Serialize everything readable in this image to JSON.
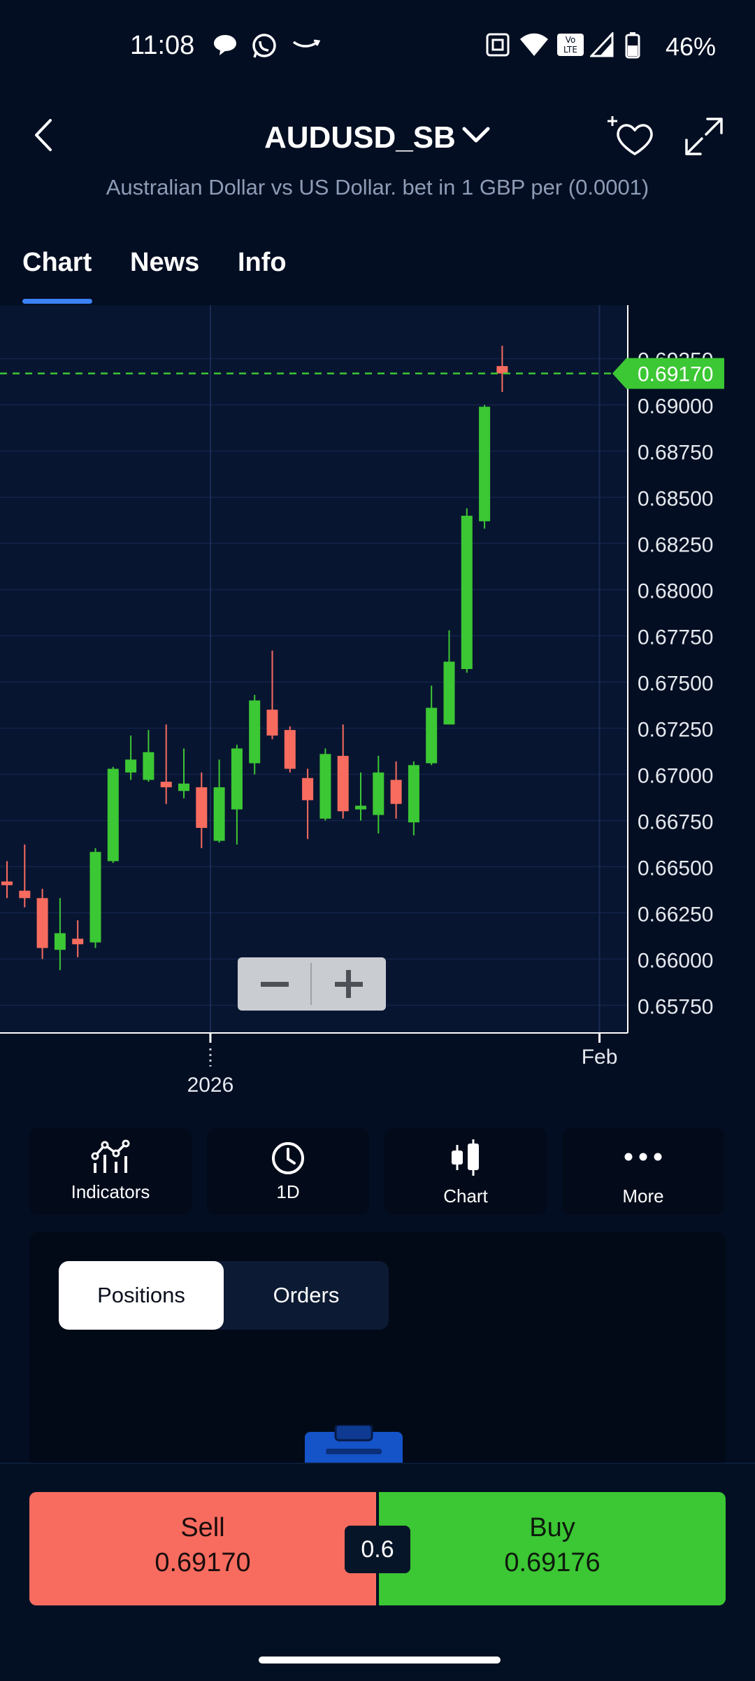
{
  "status_bar": {
    "time": "11:08",
    "battery_percent": "46%"
  },
  "header": {
    "symbol": "AUDUSD_SB",
    "description": "Australian Dollar vs US Dollar. bet in 1 GBP per (0.0001)"
  },
  "tabs": [
    {
      "label": "Chart",
      "active": true
    },
    {
      "label": "News",
      "active": false
    },
    {
      "label": "Info",
      "active": false
    }
  ],
  "chart_data": {
    "type": "candlestick",
    "current_price": 0.6917,
    "current_price_label": "0.69170",
    "y_ticks": [
      "0.69250",
      "0.69000",
      "0.68750",
      "0.68500",
      "0.68250",
      "0.68000",
      "0.67750",
      "0.67500",
      "0.67250",
      "0.67000",
      "0.66750",
      "0.66500",
      "0.66250",
      "0.66000",
      "0.65750"
    ],
    "ylim": [
      0.656,
      0.6954
    ],
    "x_labels": [
      {
        "label": "2026",
        "index": 11.5
      },
      {
        "label": "Feb",
        "index": 33.5
      }
    ],
    "up_color": "#3cc734",
    "down_color": "#f86c5f",
    "candles": [
      {
        "o": 0.6642,
        "h": 0.6653,
        "l": 0.6633,
        "c": 0.664
      },
      {
        "o": 0.6637,
        "h": 0.6662,
        "l": 0.6628,
        "c": 0.6633
      },
      {
        "o": 0.6633,
        "h": 0.6638,
        "l": 0.66,
        "c": 0.6606
      },
      {
        "o": 0.6605,
        "h": 0.6633,
        "l": 0.6594,
        "c": 0.6614
      },
      {
        "o": 0.6611,
        "h": 0.6621,
        "l": 0.6601,
        "c": 0.6608
      },
      {
        "o": 0.6609,
        "h": 0.666,
        "l": 0.6606,
        "c": 0.6658
      },
      {
        "o": 0.6653,
        "h": 0.6704,
        "l": 0.6652,
        "c": 0.6703
      },
      {
        "o": 0.6701,
        "h": 0.6721,
        "l": 0.6697,
        "c": 0.6708
      },
      {
        "o": 0.6697,
        "h": 0.6724,
        "l": 0.6696,
        "c": 0.6712
      },
      {
        "o": 0.6696,
        "h": 0.6727,
        "l": 0.6684,
        "c": 0.6693
      },
      {
        "o": 0.6691,
        "h": 0.6714,
        "l": 0.6687,
        "c": 0.6695
      },
      {
        "o": 0.6693,
        "h": 0.6701,
        "l": 0.666,
        "c": 0.6671
      },
      {
        "o": 0.6664,
        "h": 0.6708,
        "l": 0.6663,
        "c": 0.6693
      },
      {
        "o": 0.6681,
        "h": 0.6716,
        "l": 0.6662,
        "c": 0.6714
      },
      {
        "o": 0.6706,
        "h": 0.6743,
        "l": 0.67,
        "c": 0.674
      },
      {
        "o": 0.6735,
        "h": 0.6767,
        "l": 0.6719,
        "c": 0.6721
      },
      {
        "o": 0.6724,
        "h": 0.6726,
        "l": 0.6701,
        "c": 0.6703
      },
      {
        "o": 0.6698,
        "h": 0.6703,
        "l": 0.6665,
        "c": 0.6686
      },
      {
        "o": 0.6676,
        "h": 0.6714,
        "l": 0.6675,
        "c": 0.6711
      },
      {
        "o": 0.671,
        "h": 0.6727,
        "l": 0.6676,
        "c": 0.668
      },
      {
        "o": 0.6681,
        "h": 0.6701,
        "l": 0.6675,
        "c": 0.6683
      },
      {
        "o": 0.6678,
        "h": 0.671,
        "l": 0.6668,
        "c": 0.6701
      },
      {
        "o": 0.6697,
        "h": 0.6707,
        "l": 0.6676,
        "c": 0.6684
      },
      {
        "o": 0.6674,
        "h": 0.6707,
        "l": 0.6667,
        "c": 0.6705
      },
      {
        "o": 0.6706,
        "h": 0.6748,
        "l": 0.6705,
        "c": 0.6736
      },
      {
        "o": 0.6727,
        "h": 0.6778,
        "l": 0.6727,
        "c": 0.6761
      },
      {
        "o": 0.6757,
        "h": 0.6844,
        "l": 0.6755,
        "c": 0.684
      },
      {
        "o": 0.6837,
        "h": 0.69,
        "l": 0.6833,
        "c": 0.6899
      },
      {
        "o": 0.6921,
        "h": 0.6932,
        "l": 0.6907,
        "c": 0.6917
      }
    ]
  },
  "zoom": {
    "minus": "−",
    "plus": "+"
  },
  "toolbar": [
    {
      "label": "Indicators",
      "icon": "indicators-icon"
    },
    {
      "label": "1D",
      "icon": "clock-icon"
    },
    {
      "label": "Chart",
      "icon": "candlestick-icon"
    },
    {
      "label": "More",
      "icon": "more-dots-icon"
    }
  ],
  "positions_panel": {
    "tabs": [
      "Positions",
      "Orders"
    ],
    "active_tab": "Positions"
  },
  "trade": {
    "sell_label": "Sell",
    "sell_price": "0.69170",
    "buy_label": "Buy",
    "buy_price": "0.69176",
    "spread": "0.6"
  }
}
